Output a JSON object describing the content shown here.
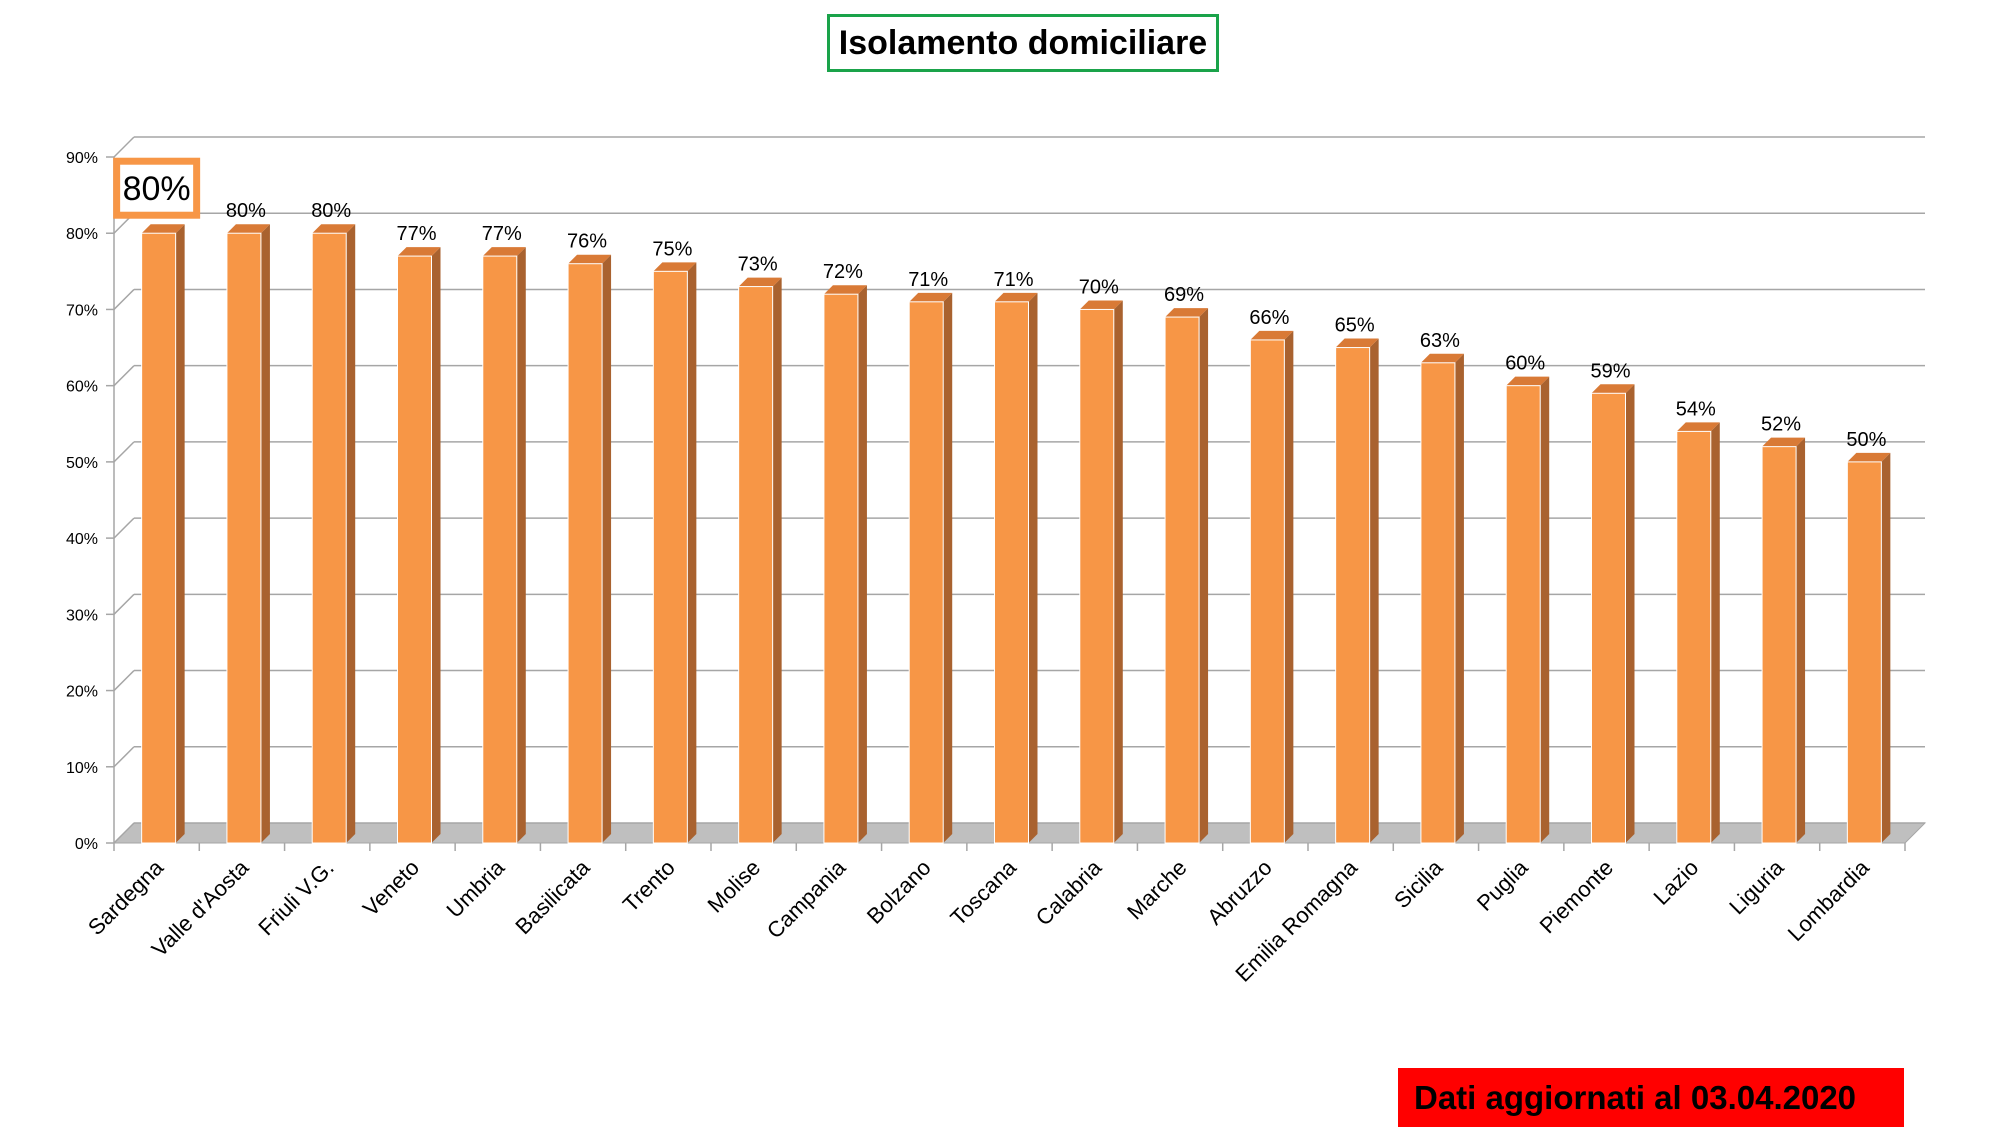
{
  "chart_data": {
    "type": "bar",
    "title": "Isolamento domiciliare",
    "categories": [
      "Sardegna",
      "Valle d'Aosta",
      "Friuli V.G.",
      "Veneto",
      "Umbria",
      "Basilicata",
      "Trento",
      "Molise",
      "Campania",
      "Bolzano",
      "Toscana",
      "Calabria",
      "Marche",
      "Abruzzo",
      "Emilia Romagna",
      "Sicilia",
      "Puglia",
      "Piemonte",
      "Lazio",
      "Liguria",
      "Lombardia"
    ],
    "values": [
      80,
      80,
      80,
      77,
      77,
      76,
      75,
      73,
      72,
      71,
      71,
      70,
      69,
      66,
      65,
      63,
      60,
      59,
      54,
      52,
      50
    ],
    "data_labels": [
      "80%",
      "80%",
      "80%",
      "77%",
      "77%",
      "76%",
      "75%",
      "73%",
      "72%",
      "71%",
      "71%",
      "70%",
      "69%",
      "66%",
      "65%",
      "63%",
      "60%",
      "59%",
      "54%",
      "52%",
      "50%"
    ],
    "y_ticks": [
      "0%",
      "10%",
      "20%",
      "30%",
      "40%",
      "50%",
      "60%",
      "70%",
      "80%",
      "90%"
    ],
    "ylim": [
      0,
      90
    ],
    "grid": true,
    "legend": "none",
    "highlighted_index": 0,
    "colors": {
      "bar_front": "#f79646",
      "bar_side": "#a9622f",
      "bar_top": "#d97a36",
      "grid": "#a6a6a6",
      "highlight_border": "#f79646"
    }
  },
  "footer": {
    "note": "Dati aggiornati al 03.04.2020"
  },
  "colors": {
    "title_border": "#1aa34a",
    "footer_bg": "#ff0000"
  }
}
